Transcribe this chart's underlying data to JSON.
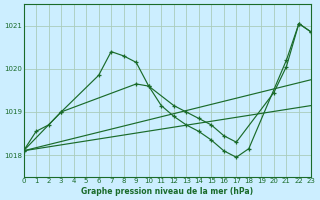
{
  "title": "Graphe pression niveau de la mer (hPa)",
  "background_color": "#cceeff",
  "grid_color": "#aaccbb",
  "line_color": "#1a6b2a",
  "xlim": [
    0,
    23
  ],
  "ylim": [
    1017.5,
    1021.5
  ],
  "yticks": [
    1018,
    1019,
    1020,
    1021
  ],
  "xticks": [
    0,
    1,
    2,
    3,
    4,
    5,
    6,
    7,
    8,
    9,
    10,
    11,
    12,
    13,
    14,
    15,
    16,
    17,
    18,
    19,
    20,
    21,
    22,
    23
  ],
  "curve1_x": [
    0,
    1,
    2,
    3,
    6,
    7,
    8,
    9,
    10,
    11,
    12,
    13,
    14,
    15,
    16,
    17,
    18,
    21,
    22,
    23
  ],
  "curve1_y": [
    1018.1,
    1018.55,
    1018.7,
    1019.0,
    1019.85,
    1020.4,
    1020.3,
    1020.15,
    1019.6,
    1019.15,
    1018.9,
    1018.7,
    1018.55,
    1018.35,
    1018.1,
    1017.95,
    1018.15,
    1020.2,
    1021.05,
    1020.85
  ],
  "curve2_x": [
    0,
    3,
    9,
    10,
    12,
    13,
    14,
    15,
    16,
    17,
    20,
    21,
    22,
    23
  ],
  "curve2_y": [
    1018.1,
    1019.0,
    1019.65,
    1019.6,
    1019.15,
    1019.0,
    1018.85,
    1018.7,
    1018.45,
    1018.3,
    1019.45,
    1020.05,
    1021.05,
    1020.85
  ],
  "line3_x": [
    0,
    23
  ],
  "line3_y": [
    1018.1,
    1019.15
  ],
  "line4_x": [
    0,
    23
  ],
  "line4_y": [
    1018.1,
    1019.75
  ]
}
